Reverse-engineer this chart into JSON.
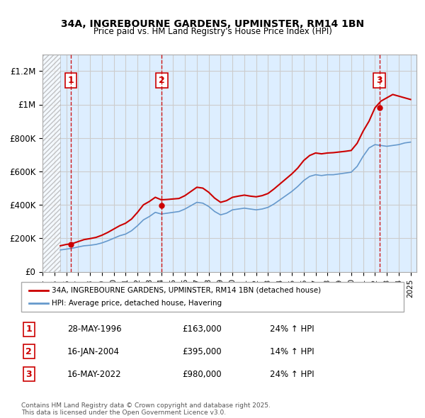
{
  "title": "34A, INGREBOURNE GARDENS, UPMINSTER, RM14 1BN",
  "subtitle": "Price paid vs. HM Land Registry's House Price Index (HPI)",
  "ylabel_ticks": [
    "£0",
    "£200K",
    "£400K",
    "£600K",
    "£800K",
    "£1M",
    "£1.2M"
  ],
  "ytick_values": [
    0,
    200000,
    400000,
    600000,
    800000,
    1000000,
    1200000
  ],
  "ylim": [
    0,
    1300000
  ],
  "xlim_start": 1994.0,
  "xlim_end": 2025.5,
  "hatch_end": 1995.5,
  "sale_markers": [
    {
      "num": 1,
      "year": 1996.4,
      "price": 163000,
      "date": "28-MAY-1996",
      "price_str": "£163,000",
      "pct": "24% ↑ HPI"
    },
    {
      "num": 2,
      "year": 2004.05,
      "price": 395000,
      "date": "16-JAN-2004",
      "price_str": "£395,000",
      "pct": "14% ↑ HPI"
    },
    {
      "num": 3,
      "year": 2022.37,
      "price": 980000,
      "date": "16-MAY-2022",
      "price_str": "£980,000",
      "pct": "24% ↑ HPI"
    }
  ],
  "red_line_color": "#cc0000",
  "blue_line_color": "#6699cc",
  "dashed_line_color": "#cc0000",
  "hatch_color": "#cccccc",
  "grid_color": "#cccccc",
  "background_color": "#ddeeff",
  "legend_line1": "34A, INGREBOURNE GARDENS, UPMINSTER, RM14 1BN (detached house)",
  "legend_line2": "HPI: Average price, detached house, Havering",
  "footer": "Contains HM Land Registry data © Crown copyright and database right 2025.\nThis data is licensed under the Open Government Licence v3.0.",
  "hpi_data": {
    "years": [
      1995.5,
      1996.0,
      1996.5,
      1997.0,
      1997.5,
      1998.0,
      1998.5,
      1999.0,
      1999.5,
      2000.0,
      2000.5,
      2001.0,
      2001.5,
      2002.0,
      2002.5,
      2003.0,
      2003.5,
      2004.0,
      2004.5,
      2005.0,
      2005.5,
      2006.0,
      2006.5,
      2007.0,
      2007.5,
      2008.0,
      2008.5,
      2009.0,
      2009.5,
      2010.0,
      2010.5,
      2011.0,
      2011.5,
      2012.0,
      2012.5,
      2013.0,
      2013.5,
      2014.0,
      2014.5,
      2015.0,
      2015.5,
      2016.0,
      2016.5,
      2017.0,
      2017.5,
      2018.0,
      2018.5,
      2019.0,
      2019.5,
      2020.0,
      2020.5,
      2021.0,
      2021.5,
      2022.0,
      2022.5,
      2023.0,
      2023.5,
      2024.0,
      2024.5,
      2025.0
    ],
    "values": [
      130000,
      135000,
      140000,
      148000,
      155000,
      158000,
      163000,
      172000,
      185000,
      200000,
      215000,
      225000,
      245000,
      275000,
      310000,
      330000,
      355000,
      345000,
      350000,
      355000,
      360000,
      375000,
      395000,
      415000,
      410000,
      390000,
      360000,
      340000,
      350000,
      370000,
      375000,
      380000,
      375000,
      370000,
      375000,
      385000,
      405000,
      430000,
      455000,
      480000,
      510000,
      545000,
      570000,
      580000,
      575000,
      580000,
      580000,
      585000,
      590000,
      595000,
      630000,
      690000,
      740000,
      760000,
      755000,
      750000,
      755000,
      760000,
      770000,
      775000
    ]
  },
  "red_data": {
    "years": [
      1995.5,
      1996.0,
      1996.5,
      1997.0,
      1997.5,
      1998.0,
      1998.5,
      1999.0,
      1999.5,
      2000.0,
      2000.5,
      2001.0,
      2001.5,
      2002.0,
      2002.5,
      2003.0,
      2003.5,
      2004.0,
      2004.5,
      2005.0,
      2005.5,
      2006.0,
      2006.5,
      2007.0,
      2007.5,
      2008.0,
      2008.5,
      2009.0,
      2009.5,
      2010.0,
      2010.5,
      2011.0,
      2011.5,
      2012.0,
      2012.5,
      2013.0,
      2013.5,
      2014.0,
      2014.5,
      2015.0,
      2015.5,
      2016.0,
      2016.5,
      2017.0,
      2017.5,
      2018.0,
      2018.5,
      2019.0,
      2019.5,
      2020.0,
      2020.5,
      2021.0,
      2021.5,
      2022.0,
      2022.5,
      2023.0,
      2023.5,
      2024.0,
      2024.5,
      2025.0
    ],
    "values": [
      155000,
      163000,
      168000,
      180000,
      192000,
      198000,
      205000,
      218000,
      235000,
      255000,
      275000,
      290000,
      315000,
      355000,
      400000,
      420000,
      445000,
      430000,
      432000,
      435000,
      438000,
      455000,
      480000,
      505000,
      500000,
      475000,
      440000,
      415000,
      425000,
      445000,
      452000,
      458000,
      452000,
      448000,
      455000,
      468000,
      495000,
      525000,
      555000,
      585000,
      620000,
      665000,
      695000,
      710000,
      705000,
      710000,
      712000,
      716000,
      720000,
      725000,
      768000,
      840000,
      900000,
      980000,
      1020000,
      1040000,
      1060000,
      1050000,
      1040000,
      1030000
    ]
  }
}
